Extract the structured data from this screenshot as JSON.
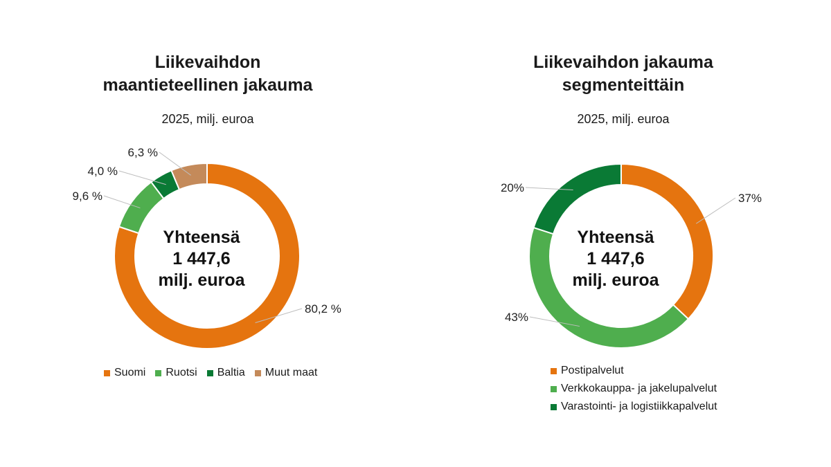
{
  "chart_data": [
    {
      "type": "donut",
      "title": "Liikevaihdon\nmaantieteellinen jakauma",
      "subtitle": "2025, milj. euroa",
      "center_label": [
        "Yhteensä",
        "1 447,6",
        "milj. euroa"
      ],
      "categories": [
        "Suomi",
        "Ruotsi",
        "Baltia",
        "Muut maat"
      ],
      "values": [
        80.2,
        9.6,
        4.0,
        6.3
      ],
      "data_labels": [
        "80,2 %",
        "9,6 %",
        "4,0 %",
        "6,3 %"
      ],
      "colors": [
        "#E5740F",
        "#4FAE4E",
        "#0A7A35",
        "#C48A5A"
      ],
      "legend_position": "bottom"
    },
    {
      "type": "donut",
      "title": "Liikevaihdon jakauma\nsegmenteittäin",
      "subtitle": "2025, milj. euroa",
      "center_label": [
        "Yhteensä",
        "1 447,6",
        "milj. euroa"
      ],
      "categories": [
        "Postipalvelut",
        "Verkkokauppa- ja jakelupalvelut",
        "Varastointi- ja logistiikkapalvelut"
      ],
      "values": [
        37,
        43,
        20
      ],
      "data_labels": [
        "37%",
        "43%",
        "20%"
      ],
      "colors": [
        "#E5740F",
        "#4FAE4E",
        "#0A7A35"
      ],
      "legend_position": "bottom"
    }
  ]
}
